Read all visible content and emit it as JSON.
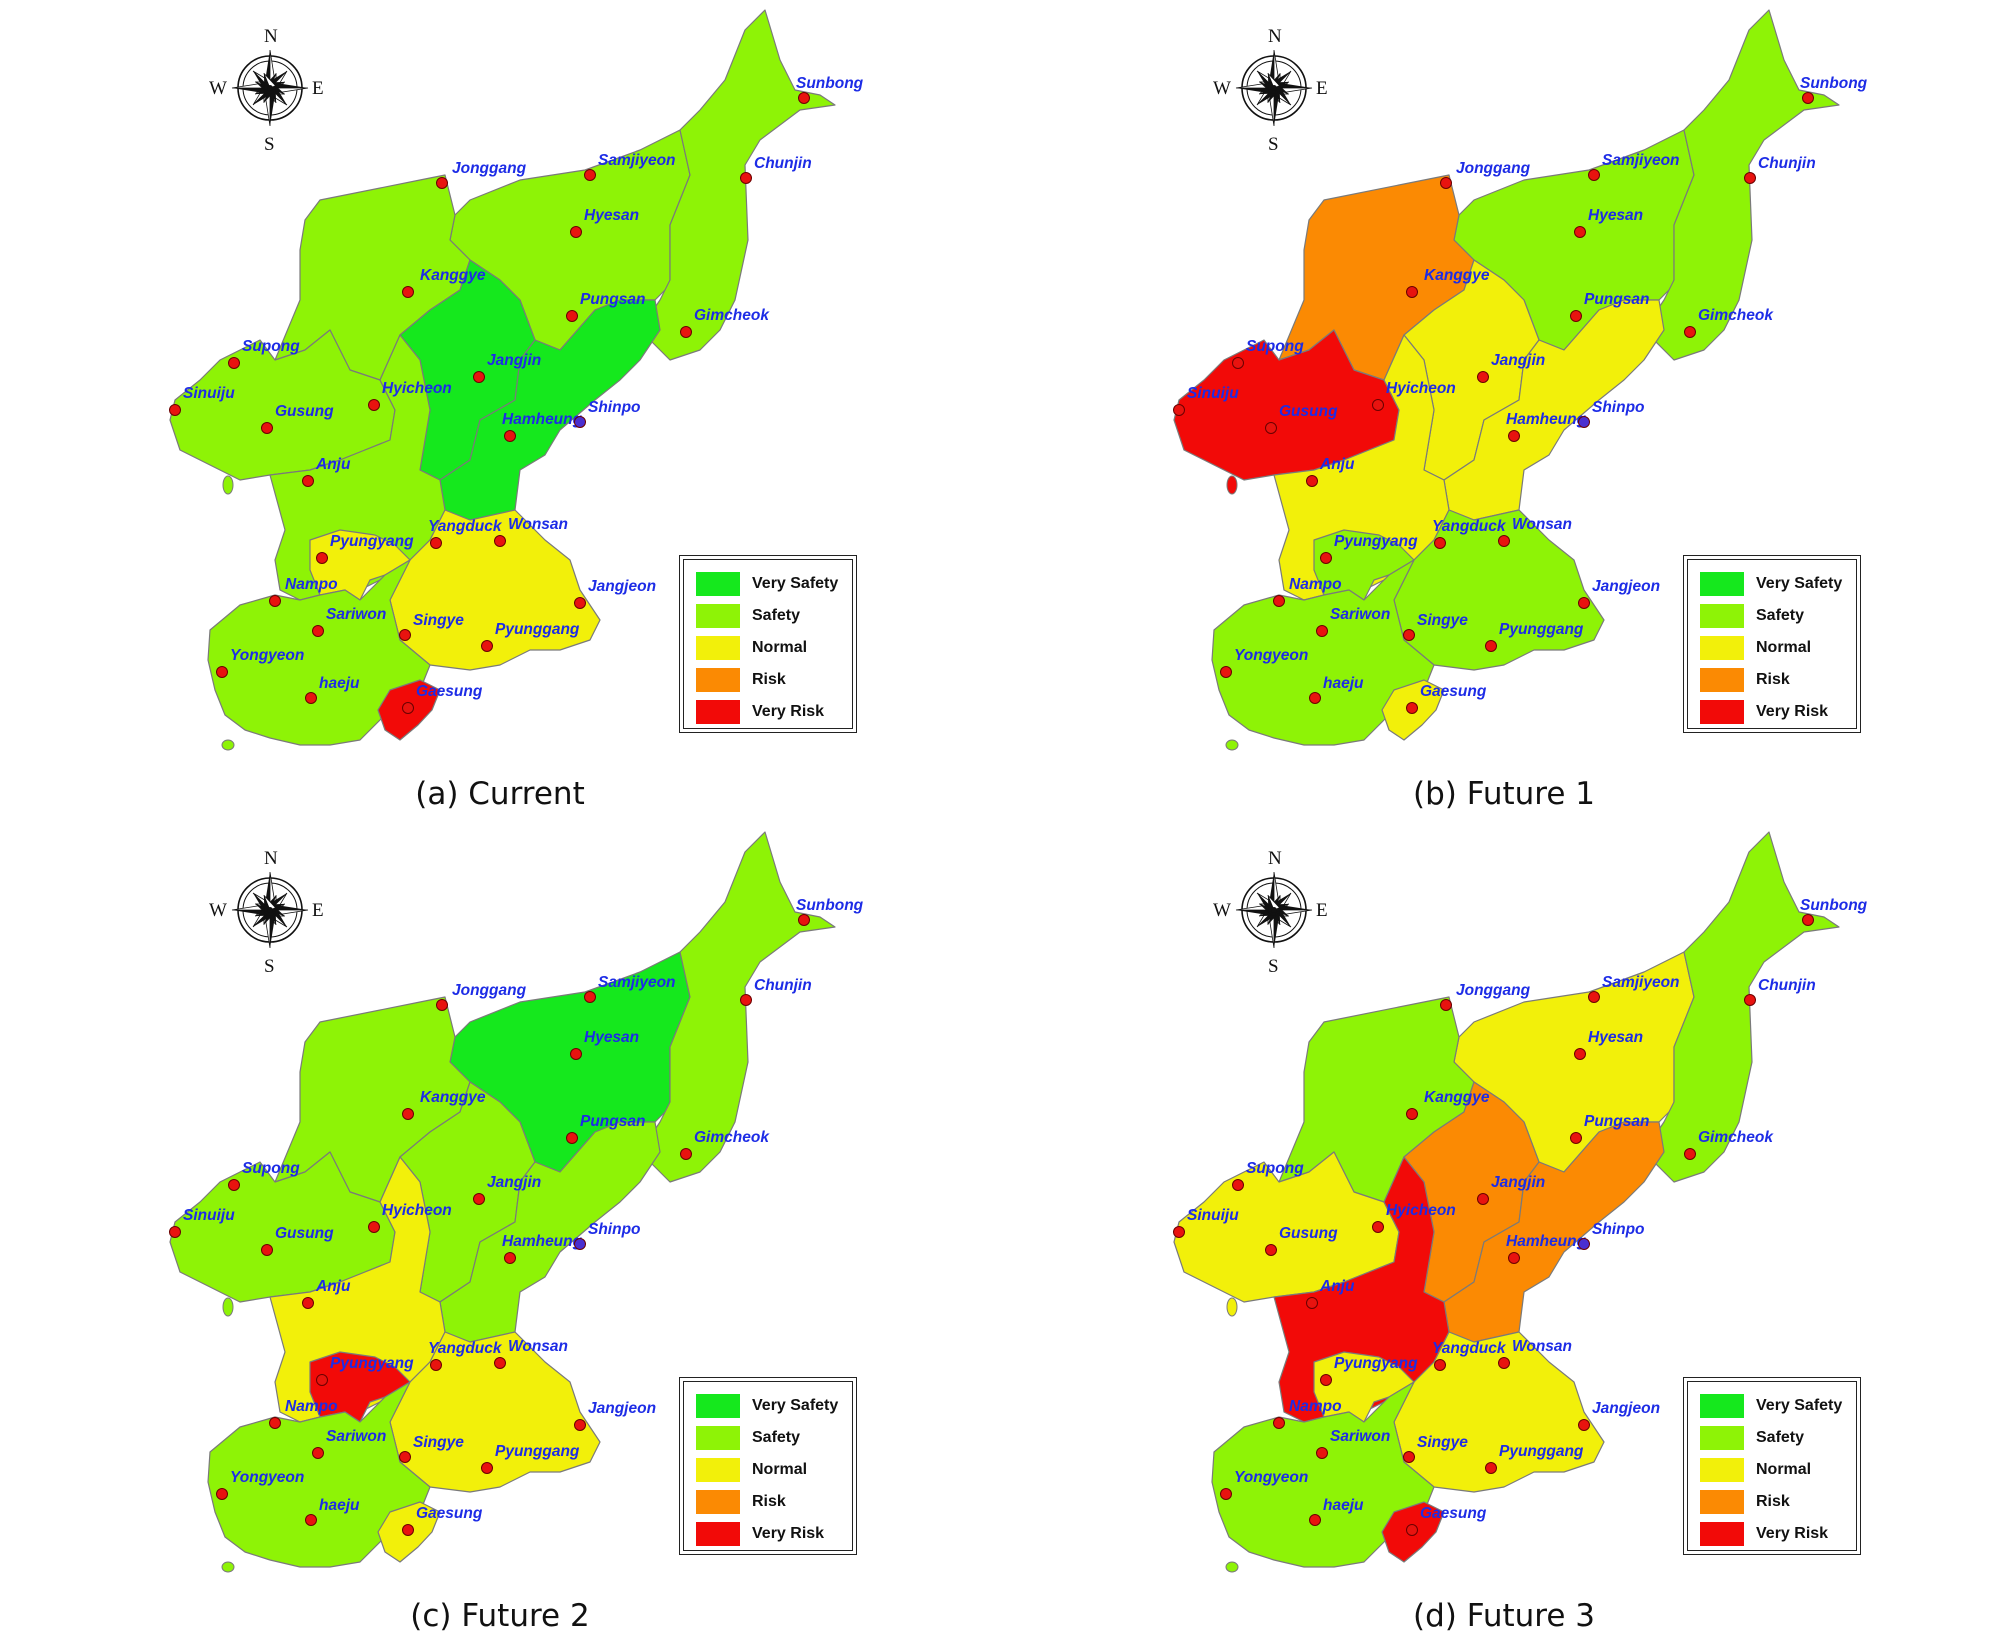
{
  "legend": {
    "items": [
      {
        "label": "Very Safety",
        "color": "#15e81d"
      },
      {
        "label": "Safety",
        "color": "#8ef306"
      },
      {
        "label": "Normal",
        "color": "#f2f00a"
      },
      {
        "label": "Risk",
        "color": "#fb8a03"
      },
      {
        "label": "Very Risk",
        "color": "#f20a08"
      }
    ]
  },
  "compass": {
    "n": "N",
    "s": "S",
    "e": "E",
    "w": "W"
  },
  "cities": [
    "Sunbong",
    "Samjiyeon",
    "Chunjin",
    "Jonggang",
    "Hyesan",
    "Kanggye",
    "Pungsan",
    "Gimcheok",
    "Jangjin",
    "Supong",
    "Sinuiju",
    "Hyicheon",
    "Hamheung",
    "Shinpo",
    "Gusung",
    "Anju",
    "Yangduck",
    "Wonsan",
    "Pyungyang",
    "Nampo",
    "Sariwon",
    "Singye",
    "Jangjeon",
    "Pyunggang",
    "Yongyeon",
    "haeju",
    "Gaesung"
  ],
  "panels": [
    {
      "caption": "(a) Current",
      "regions": {
        "northeast": "safety",
        "east": "safety",
        "jangjin": "very_safety",
        "hamgyong": "very_safety",
        "kanggye": "safety",
        "west": "safety",
        "south_central": "safety",
        "pyungyang": "normal",
        "kangwon": "normal",
        "hwanghae": "safety",
        "gaesung": "very_risk"
      }
    },
    {
      "caption": "(b) Future 1",
      "regions": {
        "northeast": "safety",
        "east": "safety",
        "jangjin": "normal",
        "hamgyong": "normal",
        "kanggye": "risk",
        "west": "very_risk",
        "south_central": "normal",
        "pyungyang": "safety",
        "kangwon": "safety",
        "hwanghae": "safety",
        "gaesung": "normal"
      }
    },
    {
      "caption": "(c) Future 2",
      "regions": {
        "northeast": "very_safety",
        "east": "safety",
        "jangjin": "safety",
        "hamgyong": "safety",
        "kanggye": "safety",
        "west": "safety",
        "south_central": "normal",
        "pyungyang": "very_risk",
        "kangwon": "normal",
        "hwanghae": "safety",
        "gaesung": "normal"
      }
    },
    {
      "caption": "(d) Future 3",
      "regions": {
        "northeast": "normal",
        "east": "safety",
        "jangjin": "risk",
        "hamgyong": "risk",
        "kanggye": "safety",
        "west": "normal",
        "south_central": "very_risk",
        "pyungyang": "normal",
        "kangwon": "normal",
        "hwanghae": "safety",
        "gaesung": "very_risk"
      }
    }
  ]
}
